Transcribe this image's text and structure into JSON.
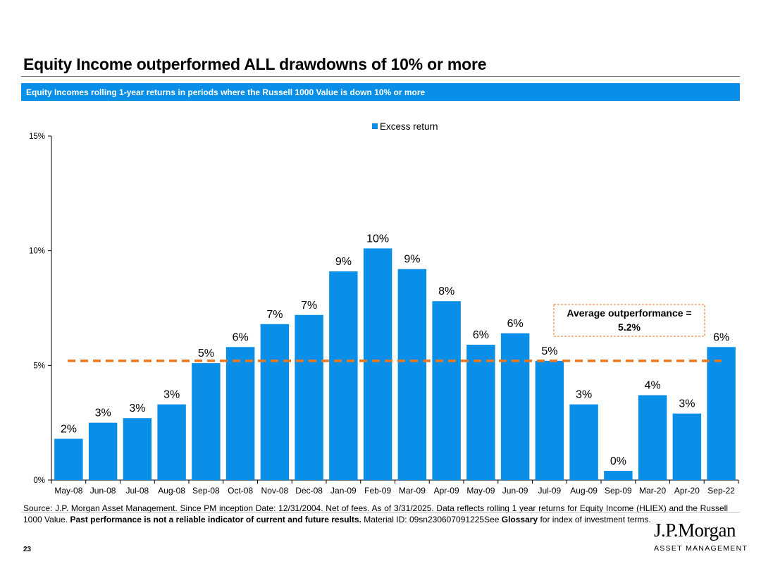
{
  "header": {
    "title": "Equity Income outperformed ALL drawdowns of 10% or more",
    "subtitle": "Equity Incomes rolling 1-year returns in periods where the Russell 1000 Value is down 10% or more"
  },
  "chart_data": {
    "type": "bar",
    "categories": [
      "May-08",
      "Jun-08",
      "Jul-08",
      "Aug-08",
      "Sep-08",
      "Oct-08",
      "Nov-08",
      "Dec-08",
      "Jan-09",
      "Feb-09",
      "Mar-09",
      "Apr-09",
      "May-09",
      "Jun-09",
      "Jul-09",
      "Aug-09",
      "Sep-09",
      "Mar-20",
      "Apr-20",
      "Sep-22"
    ],
    "series": [
      {
        "name": "Excess return",
        "values": [
          1.8,
          2.5,
          2.7,
          3.3,
          5.1,
          5.8,
          6.8,
          7.2,
          9.1,
          10.1,
          9.2,
          7.8,
          5.9,
          6.4,
          5.2,
          3.3,
          0.4,
          3.7,
          2.9,
          5.8
        ],
        "labels": [
          "2%",
          "3%",
          "3%",
          "3%",
          "5%",
          "6%",
          "7%",
          "7%",
          "9%",
          "10%",
          "9%",
          "8%",
          "6%",
          "6%",
          "5%",
          "3%",
          "0%",
          "4%",
          "3%",
          "6%"
        ],
        "color": "#0a8fe8"
      }
    ],
    "ylim": [
      0,
      15
    ],
    "yticks": [
      0,
      5,
      10,
      15
    ],
    "ytick_labels": [
      "0%",
      "5%",
      "10%",
      "15%"
    ],
    "legend_position": "top",
    "grid": false,
    "average_line": {
      "value": 5.2,
      "color": "#e87722",
      "style": "dashed"
    },
    "annotation": {
      "line1": "Average outperformance =",
      "line2": "5.2%",
      "border_color": "#e87722"
    }
  },
  "footer": {
    "source_part1": "Source: J.P. Morgan Asset Management. Since PM inception Date: 12/31/2004. Net of fees. As of 3/31/2025. Data reflects rolling 1 year returns for Equity Income (HLIEX) and the Russell 1000 Value. ",
    "source_bold": "Past performance is not a reliable indicator of current and future results.",
    "source_part2": " Material ID: 09sn230607091225See ",
    "glossary_bold": "Glossary",
    "source_part3": " for index of investment terms.",
    "page_number": "23",
    "logo_name": "J.P.Morgan",
    "logo_sub": "ASSET MANAGEMENT"
  }
}
